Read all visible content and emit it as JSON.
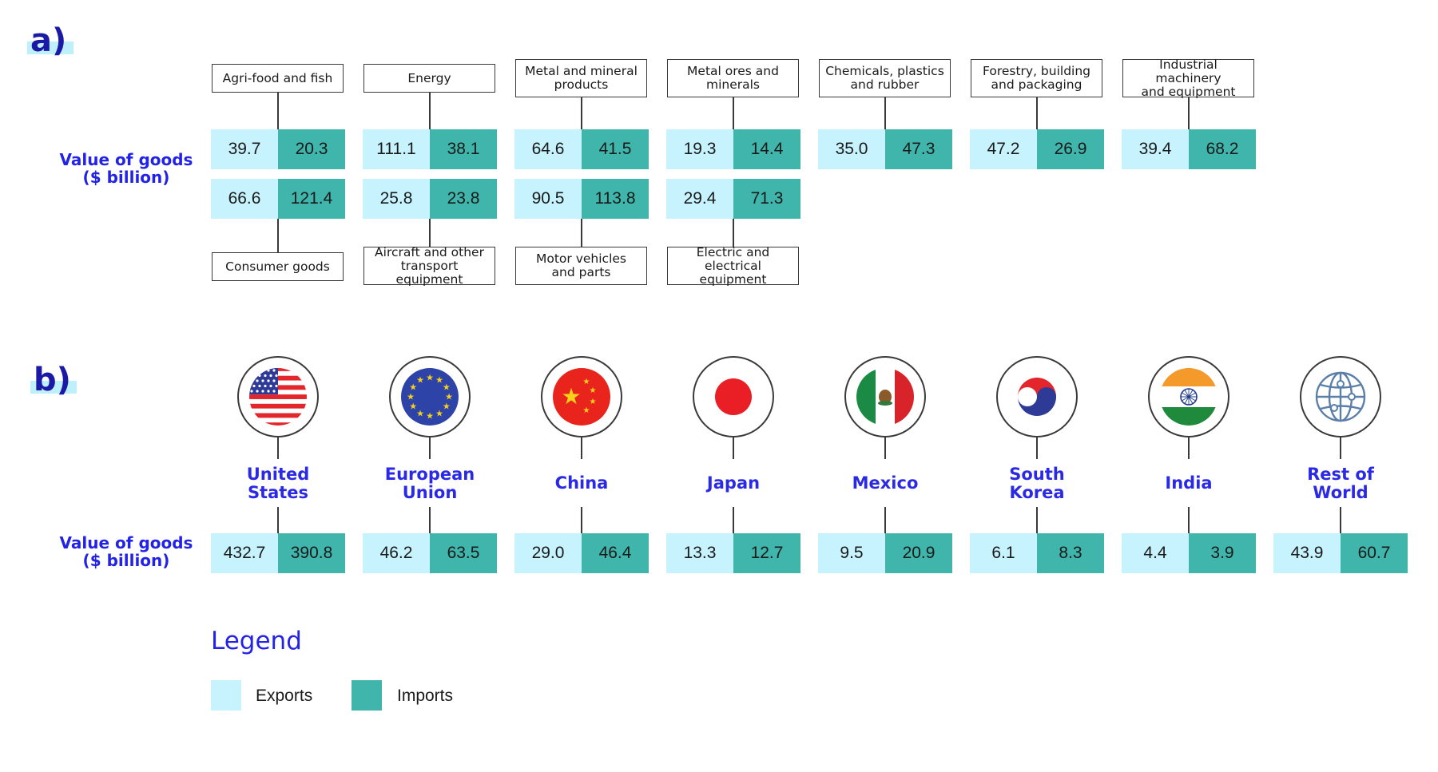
{
  "section_a_label": "a)",
  "section_b_label": "b)",
  "value_label_a": [
    "Value of goods",
    "($ billion)"
  ],
  "value_label_b": [
    "Value of goods",
    "($ billion)"
  ],
  "chart_data": [
    {
      "type": "table",
      "panel": "a",
      "columns": [
        "Exports",
        "Imports"
      ],
      "rows": [
        {
          "category": [
            "Agri-food and fish"
          ],
          "exports": "39.7",
          "imports": "20.3"
        },
        {
          "category": [
            "Energy"
          ],
          "exports": "111.1",
          "imports": "38.1"
        },
        {
          "category": [
            "Metal and mineral",
            "products"
          ],
          "exports": "64.6",
          "imports": "41.5"
        },
        {
          "category": [
            "Metal ores and",
            "minerals"
          ],
          "exports": "19.3",
          "imports": "14.4"
        },
        {
          "category": [
            "Chemicals, plastics",
            "and rubber"
          ],
          "exports": "35.0",
          "imports": "47.3"
        },
        {
          "category": [
            "Forestry, building",
            "and packaging"
          ],
          "exports": "47.2",
          "imports": "26.9"
        },
        {
          "category": [
            "Industrial machinery",
            "and equipment"
          ],
          "exports": "39.4",
          "imports": "68.2"
        },
        {
          "category": [
            "Consumer goods"
          ],
          "exports": "66.6",
          "imports": "121.4"
        },
        {
          "category": [
            "Aircraft and other",
            "transport equipment"
          ],
          "exports": "25.8",
          "imports": "23.8"
        },
        {
          "category": [
            "Motor vehicles",
            "and parts"
          ],
          "exports": "90.5",
          "imports": "113.8"
        },
        {
          "category": [
            "Electric and electrical",
            "equipment"
          ],
          "exports": "29.4",
          "imports": "71.3"
        }
      ]
    },
    {
      "type": "table",
      "panel": "b",
      "columns": [
        "Exports",
        "Imports"
      ],
      "rows": [
        {
          "region": [
            "United",
            "States"
          ],
          "flag": "us-flag",
          "exports": "432.7",
          "imports": "390.8"
        },
        {
          "region": [
            "European",
            "Union"
          ],
          "flag": "eu-flag",
          "exports": "46.2",
          "imports": "63.5"
        },
        {
          "region": [
            "China"
          ],
          "flag": "china-flag",
          "exports": "29.0",
          "imports": "46.4"
        },
        {
          "region": [
            "Japan"
          ],
          "flag": "japan-flag",
          "exports": "13.3",
          "imports": "12.7"
        },
        {
          "region": [
            "Mexico"
          ],
          "flag": "mexico-flag",
          "exports": "9.5",
          "imports": "20.9"
        },
        {
          "region": [
            "South",
            "Korea"
          ],
          "flag": "south-korea-flag",
          "exports": "6.1",
          "imports": "8.3"
        },
        {
          "region": [
            "India"
          ],
          "flag": "india-flag",
          "exports": "4.4",
          "imports": "3.9"
        },
        {
          "region": [
            "Rest of",
            "World"
          ],
          "flag": "globe-icon",
          "exports": "43.9",
          "imports": "60.7"
        }
      ]
    }
  ],
  "legend": {
    "title": "Legend",
    "items": [
      {
        "label": "Exports",
        "color": "#c6f3fd"
      },
      {
        "label": "Imports",
        "color": "#3fb5ab"
      }
    ]
  },
  "colors": {
    "exports": "#c6f3fd",
    "imports": "#3fb5ab",
    "label_blue": "#2a2ae6"
  }
}
